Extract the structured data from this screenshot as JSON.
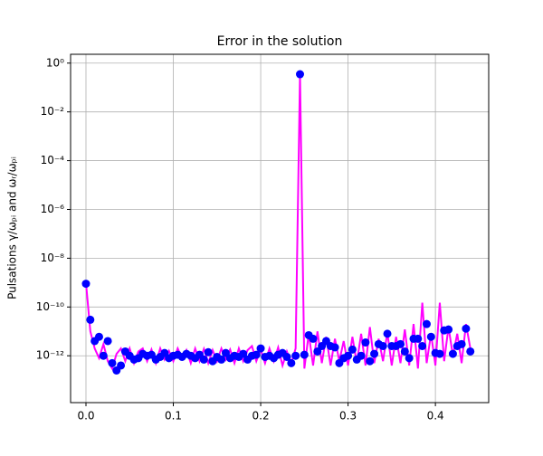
{
  "chart_data": {
    "type": "line",
    "title": "Error in the solution",
    "y_label": "Pulsations  γ/ωₚᵢ and ωᵣ/ωₚᵢ",
    "x": [
      0,
      0.005,
      0.01,
      0.015,
      0.02,
      0.025,
      0.03,
      0.035,
      0.04,
      0.045,
      0.05,
      0.055,
      0.06,
      0.065,
      0.07,
      0.075,
      0.08,
      0.085,
      0.09,
      0.095,
      0.1,
      0.105,
      0.11,
      0.115,
      0.12,
      0.125,
      0.13,
      0.135,
      0.14,
      0.145,
      0.15,
      0.155,
      0.16,
      0.165,
      0.17,
      0.175,
      0.18,
      0.185,
      0.19,
      0.195,
      0.2,
      0.205,
      0.21,
      0.215,
      0.22,
      0.225,
      0.23,
      0.235,
      0.24,
      0.245,
      0.25,
      0.255,
      0.26,
      0.265,
      0.27,
      0.275,
      0.28,
      0.285,
      0.29,
      0.295,
      0.3,
      0.305,
      0.31,
      0.315,
      0.32,
      0.325,
      0.33,
      0.335,
      0.34,
      0.345,
      0.35,
      0.355,
      0.36,
      0.365,
      0.37,
      0.375,
      0.38,
      0.385,
      0.39,
      0.395,
      0.4,
      0.405,
      0.41,
      0.415,
      0.42,
      0.425,
      0.43,
      0.435,
      0.44
    ],
    "series": [
      {
        "color": "#ff00ff",
        "marker": false,
        "line": true,
        "values": [
          1e-09,
          1e-11,
          2e-12,
          8e-13,
          3e-12,
          6e-13,
          3e-13,
          1.2e-12,
          2e-12,
          6e-13,
          2e-12,
          5e-13,
          1.5e-12,
          2e-12,
          6e-13,
          1.8e-12,
          5e-13,
          2e-12,
          7e-13,
          1.6e-12,
          6e-13,
          2e-12,
          8e-13,
          1.7e-12,
          5e-13,
          2e-12,
          6e-13,
          1.9e-12,
          5e-13,
          1.7e-12,
          6e-13,
          2e-12,
          7e-13,
          1.8e-12,
          5e-13,
          2e-12,
          6e-13,
          1.7e-12,
          2.5e-12,
          6e-13,
          1.8e-12,
          5e-13,
          2e-12,
          6e-13,
          2.2e-12,
          4e-13,
          1.5e-12,
          5e-13,
          2e-12,
          0.35,
          3e-13,
          8e-12,
          4e-13,
          1e-11,
          5e-13,
          6e-12,
          4e-13,
          5e-12,
          6e-13,
          4e-12,
          4e-13,
          6e-12,
          5e-13,
          8e-12,
          4e-13,
          1.5e-11,
          5e-13,
          5e-12,
          6e-13,
          9e-12,
          4e-13,
          6e-12,
          5e-13,
          1.2e-11,
          4e-13,
          2e-11,
          3e-13,
          1.5e-10,
          5e-13,
          8e-12,
          4e-13,
          1.5e-10,
          6e-13,
          1.5e-11,
          1e-12,
          8e-12,
          5e-13,
          2e-11,
          2e-12
        ]
      },
      {
        "color": "#0000ff",
        "marker": true,
        "line": false,
        "values": [
          9e-10,
          3e-11,
          4e-12,
          6e-12,
          1e-12,
          4e-12,
          5e-13,
          2.5e-13,
          4e-13,
          1.5e-12,
          1e-12,
          7e-13,
          8e-13,
          1.2e-12,
          1e-12,
          1.1e-12,
          7e-13,
          9e-13,
          1.3e-12,
          8e-13,
          1e-12,
          1.1e-12,
          9e-13,
          1.2e-12,
          1e-12,
          8e-13,
          1.1e-12,
          7e-13,
          1.4e-12,
          6e-13,
          9e-13,
          7e-13,
          1.3e-12,
          8e-13,
          1e-12,
          9e-13,
          1.2e-12,
          7e-13,
          1e-12,
          1.1e-12,
          2e-12,
          9e-13,
          1e-12,
          8e-13,
          1.1e-12,
          1.3e-12,
          9e-13,
          5e-13,
          1e-12,
          0.35,
          1.1e-12,
          7e-12,
          5e-12,
          1.5e-12,
          2.5e-12,
          4e-12,
          2.5e-12,
          2.2e-12,
          5e-13,
          8e-13,
          1e-12,
          1.8e-12,
          7e-13,
          1e-12,
          3.5e-12,
          6e-13,
          1.2e-12,
          3e-12,
          2.5e-12,
          8e-12,
          2.5e-12,
          2.5e-12,
          3e-12,
          1.5e-12,
          8e-13,
          5e-12,
          5e-12,
          2.5e-12,
          2e-11,
          6e-12,
          1.3e-12,
          1.2e-12,
          1.1e-11,
          1.2e-11,
          1.2e-12,
          2.5e-12,
          3e-12,
          1.3e-11,
          1.5e-12
        ]
      }
    ],
    "xlim": [
      -0.0176,
      0.461
    ],
    "xticks": [
      {
        "value": 0,
        "label": "0.0"
      },
      {
        "value": 0.1,
        "label": "0.1"
      },
      {
        "value": 0.2,
        "label": "0.2"
      },
      {
        "value": 0.3,
        "label": "0.3"
      },
      {
        "value": 0.4,
        "label": "0.4"
      }
    ],
    "ylim": [
      1.2e-14,
      2.3
    ],
    "log_y": true,
    "yticks": [
      {
        "value": 1,
        "label": "10⁰"
      },
      {
        "value": 0.01,
        "label": "10⁻²"
      },
      {
        "value": 0.0001,
        "label": "10⁻⁴"
      },
      {
        "value": 1e-06,
        "label": "10⁻⁶"
      },
      {
        "value": 1e-08,
        "label": "10⁻⁸"
      },
      {
        "value": 1e-10,
        "label": "10⁻¹⁰"
      },
      {
        "value": 1e-12,
        "label": "10⁻¹²"
      }
    ],
    "grid": true
  }
}
